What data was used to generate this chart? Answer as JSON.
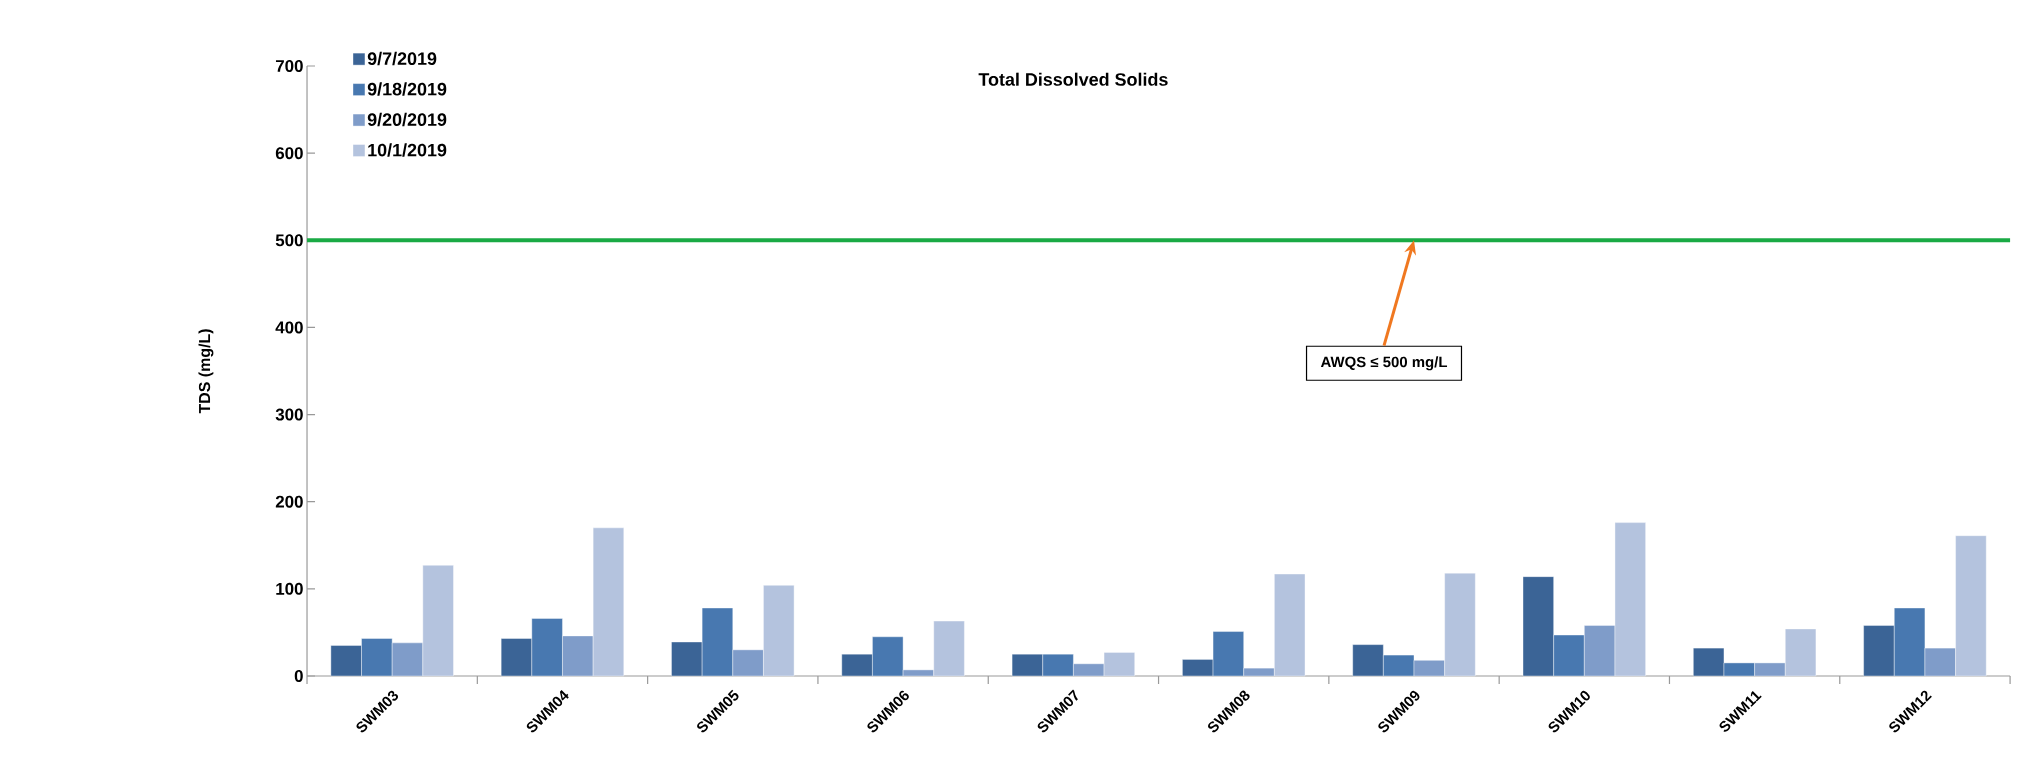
{
  "chart_data": {
    "type": "bar",
    "title": "Total Dissolved Solids",
    "ylabel": "TDS (mg/L)",
    "categories": [
      "SWM03",
      "SWM04",
      "SWM05",
      "SWM06",
      "SWM07",
      "SWM08",
      "SWM09",
      "SWM10",
      "SWM11",
      "SWM12"
    ],
    "series": [
      {
        "name": "9/7/2019",
        "color": "#3b6496",
        "values": [
          35,
          43,
          39,
          25,
          25,
          19,
          36,
          114,
          32,
          58
        ]
      },
      {
        "name": "9/18/2019",
        "color": "#4878b0",
        "values": [
          43,
          66,
          78,
          45,
          25,
          51,
          24,
          47,
          15,
          78
        ]
      },
      {
        "name": "9/20/2019",
        "color": "#7f9cc9",
        "values": [
          38,
          46,
          30,
          7,
          14,
          9,
          18,
          58,
          15,
          32
        ]
      },
      {
        "name": "10/1/2019",
        "color": "#b4c3de",
        "values": [
          127,
          170,
          104,
          63,
          27,
          117,
          118,
          176,
          54,
          161
        ]
      }
    ],
    "ylim": [
      0,
      700
    ],
    "yticks": [
      0,
      100,
      200,
      300,
      400,
      500,
      600,
      700
    ],
    "ref_lines": [
      {
        "axis": "y",
        "value": 500,
        "color": "#1aaa45"
      }
    ],
    "annotations": [
      {
        "text": "AWQS ≤ 500 mg/L",
        "x": "SWM09",
        "y": 500
      }
    ],
    "legend": "top left",
    "grid": false
  }
}
